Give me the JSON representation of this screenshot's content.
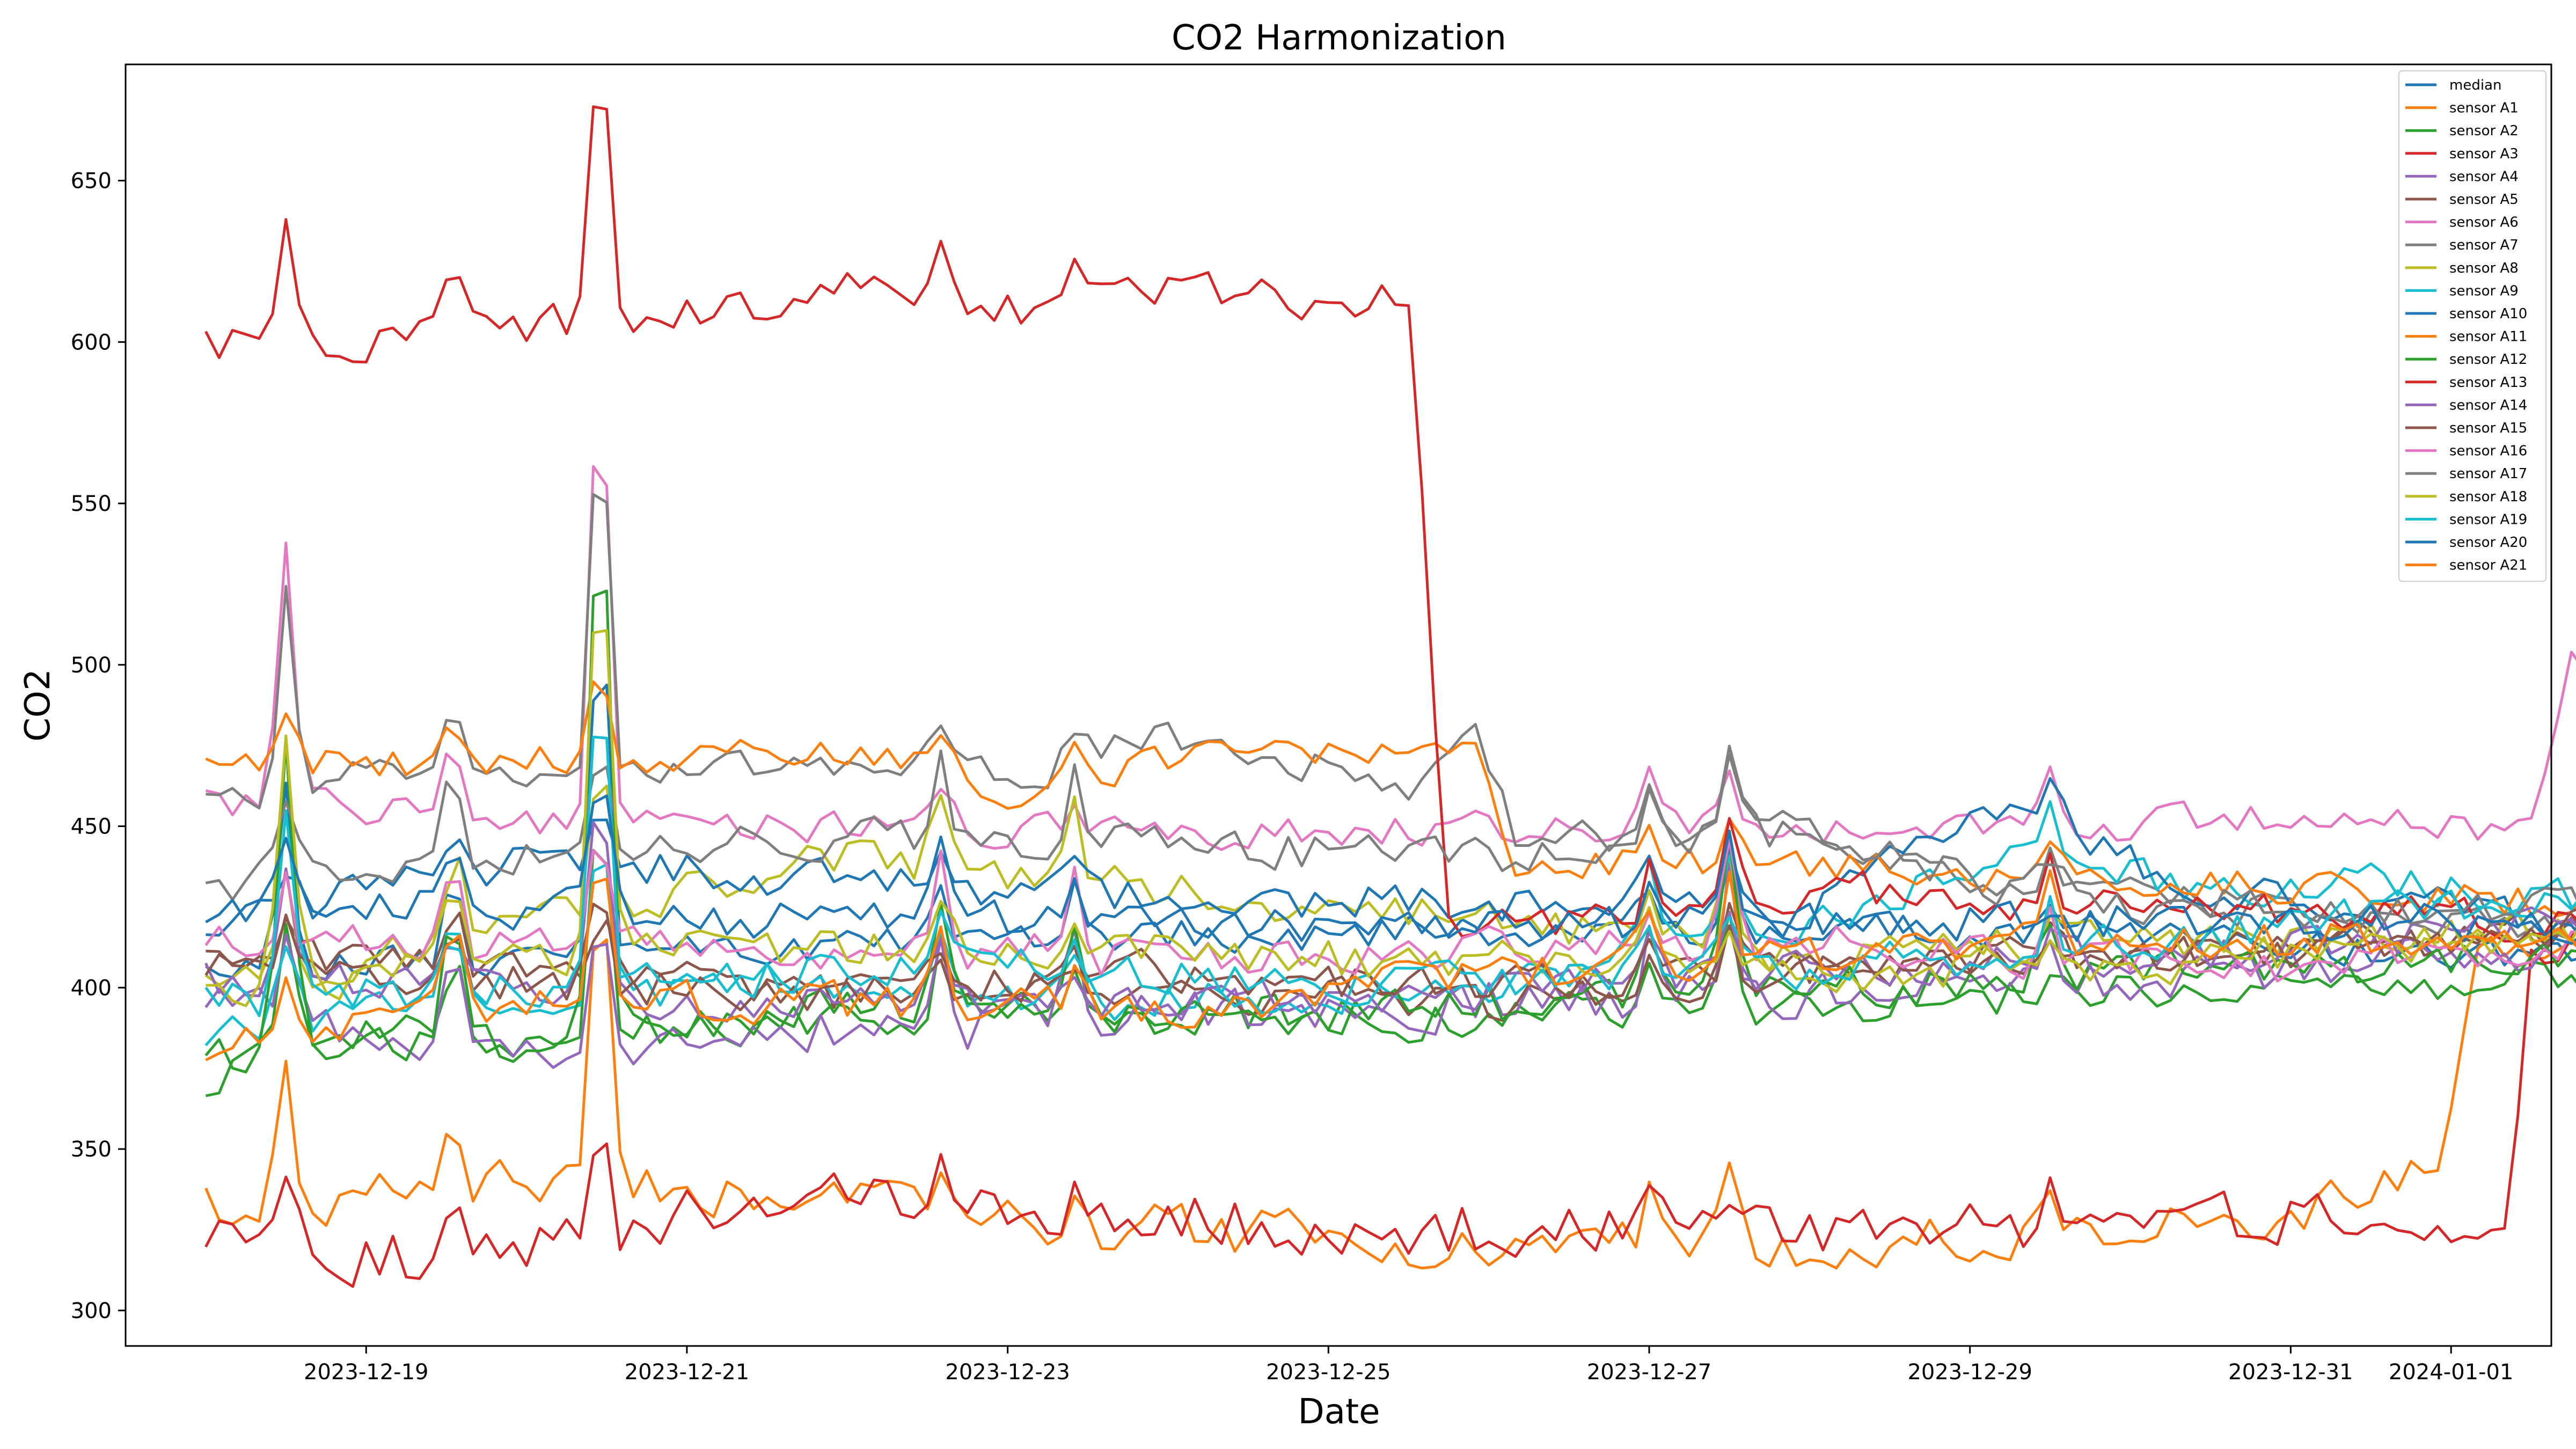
{
  "chart_data": {
    "type": "line",
    "title": "CO2 Harmonization",
    "xlabel": "Date",
    "ylabel": "CO2",
    "x_ticks": [
      "2023-12-19",
      "2023-12-21",
      "2023-12-23",
      "2023-12-25",
      "2023-12-27",
      "2023-12-29",
      "2023-12-31",
      "2024-01-01"
    ],
    "y_ticks": [
      300,
      350,
      400,
      450,
      500,
      550,
      600,
      650
    ],
    "xlim": [
      "2023-12-17T12:00",
      "2024-01-01T15:00"
    ],
    "ylim": [
      289,
      686
    ],
    "x_start": "2023-12-18T00:00",
    "x_step_hours": 2,
    "grid": false,
    "legend": "top-right",
    "series": [
      {
        "name": "median",
        "color": "#1f77b4",
        "seed": 1,
        "kp": [
          [
            0,
            405
          ],
          [
            60,
            410
          ],
          [
            120,
            415
          ],
          [
            200,
            418
          ],
          [
            280,
            418
          ],
          [
            336,
            410
          ],
          [
            350,
            408
          ],
          [
            400,
            406
          ],
          [
            432,
            404
          ]
        ],
        "noise": 5
      },
      {
        "name": "sensor A1",
        "color": "#ff7f0e",
        "seed": 2,
        "kp": [
          [
            0,
            333
          ],
          [
            20,
            335
          ],
          [
            48,
            340
          ],
          [
            80,
            335
          ],
          [
            120,
            328
          ],
          [
            180,
            322
          ],
          [
            230,
            320
          ],
          [
            270,
            323
          ],
          [
            310,
            330
          ],
          [
            320,
            335
          ],
          [
            335,
            350
          ],
          [
            340,
            410
          ],
          [
            360,
            412
          ],
          [
            432,
            405
          ]
        ],
        "noise": 7
      },
      {
        "name": "sensor A2",
        "color": "#2ca02c",
        "seed": 3,
        "kp": [
          [
            0,
            372
          ],
          [
            24,
            388
          ],
          [
            60,
            385
          ],
          [
            120,
            395
          ],
          [
            180,
            390
          ],
          [
            240,
            395
          ],
          [
            300,
            400
          ],
          [
            360,
            402
          ],
          [
            432,
            395
          ]
        ],
        "noise": 6
      },
      {
        "name": "sensor A3",
        "color": "#d62728",
        "seed": 4,
        "kp": [
          [
            0,
            324
          ],
          [
            12,
            322
          ],
          [
            20,
            315
          ],
          [
            48,
            320
          ],
          [
            72,
            330
          ],
          [
            96,
            338
          ],
          [
            120,
            330
          ],
          [
            180,
            325
          ],
          [
            240,
            325
          ],
          [
            300,
            326
          ],
          [
            320,
            330
          ],
          [
            345,
            330
          ],
          [
            348,
            410
          ],
          [
            360,
            420
          ],
          [
            432,
            412
          ]
        ],
        "noise": 8
      },
      {
        "name": "sensor A4",
        "color": "#9467bd",
        "seed": 5,
        "kp": [
          [
            0,
            395
          ],
          [
            48,
            382
          ],
          [
            96,
            388
          ],
          [
            144,
            392
          ],
          [
            192,
            395
          ],
          [
            240,
            398
          ],
          [
            290,
            402
          ],
          [
            360,
            414
          ],
          [
            432,
            406
          ]
        ],
        "noise": 7
      },
      {
        "name": "sensor A5",
        "color": "#8c564b",
        "seed": 6,
        "kp": [
          [
            0,
            410
          ],
          [
            48,
            405
          ],
          [
            96,
            398
          ],
          [
            144,
            398
          ],
          [
            192,
            395
          ],
          [
            240,
            405
          ],
          [
            300,
            412
          ],
          [
            360,
            418
          ],
          [
            432,
            410
          ]
        ],
        "noise": 6
      },
      {
        "name": "sensor A6",
        "color": "#e377c2",
        "seed": 7,
        "kp": [
          [
            0,
            458
          ],
          [
            48,
            452
          ],
          [
            96,
            450
          ],
          [
            144,
            448
          ],
          [
            192,
            450
          ],
          [
            240,
            448
          ],
          [
            300,
            452
          ],
          [
            348,
            448
          ],
          [
            354,
            500
          ],
          [
            372,
            495
          ],
          [
            380,
            455
          ],
          [
            390,
            460
          ],
          [
            410,
            450
          ],
          [
            432,
            445
          ]
        ],
        "noise": 5
      },
      {
        "name": "sensor A7",
        "color": "#7f7f7f",
        "seed": 8,
        "kp": [
          [
            0,
            455
          ],
          [
            24,
            470
          ],
          [
            60,
            468
          ],
          [
            96,
            468
          ],
          [
            120,
            465
          ],
          [
            144,
            478
          ],
          [
            170,
            468
          ],
          [
            180,
            462
          ],
          [
            190,
            480
          ],
          [
            196,
            445
          ],
          [
            240,
            450
          ],
          [
            260,
            435
          ],
          [
            300,
            425
          ],
          [
            340,
            420
          ],
          [
            432,
            410
          ]
        ],
        "noise": 5
      },
      {
        "name": "sensor A8",
        "color": "#bcbd22",
        "seed": 9,
        "kp": [
          [
            0,
            400
          ],
          [
            48,
            420
          ],
          [
            96,
            440
          ],
          [
            144,
            430
          ],
          [
            192,
            420
          ],
          [
            240,
            410
          ],
          [
            300,
            415
          ],
          [
            360,
            418
          ],
          [
            432,
            408
          ]
        ],
        "noise": 6
      },
      {
        "name": "sensor A9",
        "color": "#17becf",
        "seed": 10,
        "kp": [
          [
            0,
            388
          ],
          [
            48,
            398
          ],
          [
            96,
            402
          ],
          [
            144,
            395
          ],
          [
            192,
            402
          ],
          [
            240,
            418
          ],
          [
            270,
            440
          ],
          [
            300,
            430
          ],
          [
            330,
            432
          ],
          [
            380,
            425
          ],
          [
            432,
            400
          ]
        ],
        "noise": 6
      },
      {
        "name": "sensor A10",
        "color": "#1f77b4",
        "seed": 11,
        "kp": [
          [
            0,
            420
          ],
          [
            48,
            440
          ],
          [
            96,
            432
          ],
          [
            144,
            428
          ],
          [
            192,
            425
          ],
          [
            240,
            425
          ],
          [
            270,
            455
          ],
          [
            300,
            430
          ],
          [
            360,
            420
          ],
          [
            432,
            410
          ]
        ],
        "noise": 6
      },
      {
        "name": "sensor A11",
        "color": "#ff7f0e",
        "seed": 12,
        "kp": [
          [
            0,
            472
          ],
          [
            24,
            470
          ],
          [
            60,
            470
          ],
          [
            96,
            472
          ],
          [
            120,
            462
          ],
          [
            144,
            470
          ],
          [
            170,
            472
          ],
          [
            190,
            480
          ],
          [
            196,
            440
          ],
          [
            240,
            438
          ],
          [
            300,
            432
          ],
          [
            360,
            425
          ],
          [
            432,
            415
          ]
        ],
        "noise": 5
      },
      {
        "name": "sensor A12",
        "color": "#2ca02c",
        "seed": 13,
        "kp": [
          [
            0,
            378
          ],
          [
            48,
            382
          ],
          [
            96,
            395
          ],
          [
            144,
            390
          ],
          [
            192,
            395
          ],
          [
            240,
            400
          ],
          [
            300,
            405
          ],
          [
            360,
            410
          ],
          [
            432,
            405
          ]
        ],
        "noise": 6
      },
      {
        "name": "sensor A13",
        "color": "#d62728",
        "seed": 14,
        "kp": [
          [
            0,
            600
          ],
          [
            24,
            600
          ],
          [
            48,
            605
          ],
          [
            72,
            608
          ],
          [
            96,
            615
          ],
          [
            120,
            610
          ],
          [
            144,
            615
          ],
          [
            168,
            612
          ],
          [
            180,
            614
          ],
          [
            186,
            420
          ],
          [
            200,
            418
          ],
          [
            240,
            430
          ],
          [
            300,
            425
          ],
          [
            360,
            420
          ],
          [
            432,
            410
          ]
        ],
        "noise": 6
      },
      {
        "name": "sensor A14",
        "color": "#9467bd",
        "seed": 15,
        "kp": [
          [
            0,
            402
          ],
          [
            48,
            400
          ],
          [
            96,
            395
          ],
          [
            144,
            395
          ],
          [
            192,
            400
          ],
          [
            240,
            405
          ],
          [
            300,
            410
          ],
          [
            360,
            420
          ],
          [
            432,
            408
          ]
        ],
        "noise": 6
      },
      {
        "name": "sensor A15",
        "color": "#8c564b",
        "seed": 16,
        "kp": [
          [
            0,
            408
          ],
          [
            48,
            402
          ],
          [
            96,
            398
          ],
          [
            144,
            405
          ],
          [
            192,
            400
          ],
          [
            240,
            405
          ],
          [
            300,
            410
          ],
          [
            360,
            420
          ],
          [
            432,
            408
          ]
        ],
        "noise": 6
      },
      {
        "name": "sensor A16",
        "color": "#e377c2",
        "seed": 17,
        "kp": [
          [
            0,
            415
          ],
          [
            48,
            412
          ],
          [
            96,
            412
          ],
          [
            144,
            410
          ],
          [
            192,
            412
          ],
          [
            240,
            415
          ],
          [
            300,
            405
          ],
          [
            360,
            415
          ],
          [
            432,
            410
          ]
        ],
        "noise": 6
      },
      {
        "name": "sensor A17",
        "color": "#7f7f7f",
        "seed": 18,
        "kp": [
          [
            0,
            432
          ],
          [
            48,
            440
          ],
          [
            96,
            448
          ],
          [
            144,
            445
          ],
          [
            192,
            440
          ],
          [
            240,
            448
          ],
          [
            270,
            430
          ],
          [
            300,
            425
          ],
          [
            360,
            425
          ],
          [
            432,
            410
          ]
        ],
        "noise": 6
      },
      {
        "name": "sensor A18",
        "color": "#bcbd22",
        "seed": 19,
        "kp": [
          [
            0,
            398
          ],
          [
            48,
            410
          ],
          [
            96,
            412
          ],
          [
            144,
            410
          ],
          [
            192,
            408
          ],
          [
            240,
            405
          ],
          [
            300,
            408
          ],
          [
            360,
            420
          ],
          [
            432,
            405
          ]
        ],
        "noise": 6
      },
      {
        "name": "sensor A19",
        "color": "#17becf",
        "seed": 20,
        "kp": [
          [
            0,
            395
          ],
          [
            48,
            400
          ],
          [
            96,
            405
          ],
          [
            144,
            405
          ],
          [
            192,
            400
          ],
          [
            240,
            405
          ],
          [
            300,
            418
          ],
          [
            360,
            430
          ],
          [
            432,
            398
          ]
        ],
        "noise": 6
      },
      {
        "name": "sensor A20",
        "color": "#1f77b4",
        "seed": 21,
        "kp": [
          [
            0,
            425
          ],
          [
            48,
            425
          ],
          [
            96,
            420
          ],
          [
            144,
            420
          ],
          [
            192,
            418
          ],
          [
            240,
            420
          ],
          [
            300,
            420
          ],
          [
            360,
            420
          ],
          [
            432,
            410
          ]
        ],
        "noise": 6
      },
      {
        "name": "sensor A21",
        "color": "#ff7f0e",
        "seed": 22,
        "kp": [
          [
            0,
            380
          ],
          [
            48,
            395
          ],
          [
            96,
            395
          ],
          [
            144,
            392
          ],
          [
            192,
            405
          ],
          [
            240,
            410
          ],
          [
            300,
            415
          ],
          [
            360,
            415
          ],
          [
            432,
            408
          ]
        ],
        "noise": 6
      }
    ],
    "spikes": [
      {
        "hours": [
          12
        ],
        "amp": [
          100,
          60,
          40,
          30,
          25,
          20
        ]
      },
      {
        "hours": [
          37
        ],
        "amp": [
          40,
          30,
          25,
          20
        ]
      },
      {
        "hours": [
          59
        ],
        "amp": [
          190,
          120,
          80,
          60,
          45,
          35
        ]
      },
      {
        "hours": [
          110
        ],
        "amp": [
          35,
          25,
          20,
          15
        ]
      },
      {
        "hours": [
          130
        ],
        "amp": [
          30,
          20,
          15,
          10
        ]
      },
      {
        "hours": [
          216
        ],
        "amp": [
          25,
          20,
          15
        ]
      },
      {
        "hours": [
          228
        ],
        "amp": [
          45,
          30,
          25,
          20
        ]
      },
      {
        "hours": [
          276
        ],
        "amp": [
          20,
          15,
          10
        ]
      }
    ]
  },
  "legend": {
    "entries": [
      "median",
      "sensor A1",
      "sensor A2",
      "sensor A3",
      "sensor A4",
      "sensor A5",
      "sensor A6",
      "sensor A7",
      "sensor A8",
      "sensor A9",
      "sensor A10",
      "sensor A11",
      "sensor A12",
      "sensor A13",
      "sensor A14",
      "sensor A15",
      "sensor A16",
      "sensor A17",
      "sensor A18",
      "sensor A19",
      "sensor A20",
      "sensor A21"
    ]
  }
}
